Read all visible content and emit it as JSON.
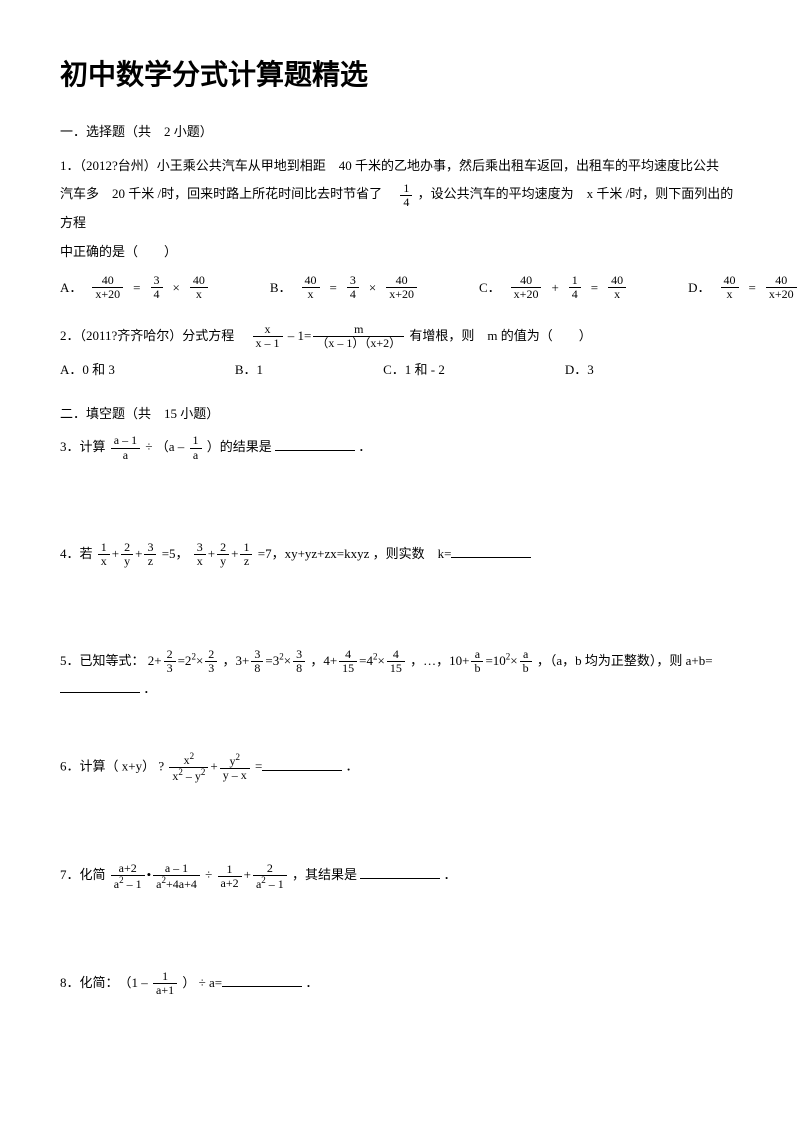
{
  "title": "初中数学分式计算题精选",
  "section1_header": "一．选择题（共　2 小题）",
  "q1_line1": "1．（2012?台州）小王乘公共汽车从甲地到相距　40 千米的乙地办事，然后乘出租车返回，出租车的平均速度比公共",
  "q1_line2a": "汽车多　20 千米 /时，回来时路上所花时间比去时节省了　",
  "q1_line2b": "，设公共汽车的平均速度为　x 千米 /时，则下面列出的方程",
  "q1_line3": "中正确的是（　　）",
  "q1_choices": {
    "a": "A．",
    "b": "B．",
    "c": "C．",
    "d": "D．"
  },
  "q2_text_a": "2．（2011?齐齐哈尔）分式方程　",
  "q2_text_b": "有增根，则　m 的值为（　　）",
  "q2_choices": {
    "a": "A．0 和 3",
    "b": "B．1",
    "c": "C．1 和 - 2",
    "d": "D．3"
  },
  "section2_header": "二．填空题（共　15 小题）",
  "q3_a": "3．计算 ",
  "q3_b": "（a – ",
  "q3_c": "）的结果是 ",
  "q3_d": "．",
  "q4_a": "4．若 ",
  "q4_b": "=5，",
  "q4_c": "=7，xy+yz+zx=kxyz ，则实数　k=",
  "q5_a": "5．已知等式： 2+",
  "q5_b": "，3+",
  "q5_c": "，4+",
  "q5_d": "，…，10+",
  "q5_e": "，（a，b 均为正整数），则 a+b=",
  "q5_f": "．",
  "q6_a": "6．计算（ x+y） ?",
  "q6_b": "=",
  "q6_c": "．",
  "q7_a": "7．化简 ",
  "q7_b": "，其结果是 ",
  "q7_c": "．",
  "q8_a": "8．化简：　（1 – ",
  "q8_b": "） ÷ a=",
  "q8_c": "．"
}
